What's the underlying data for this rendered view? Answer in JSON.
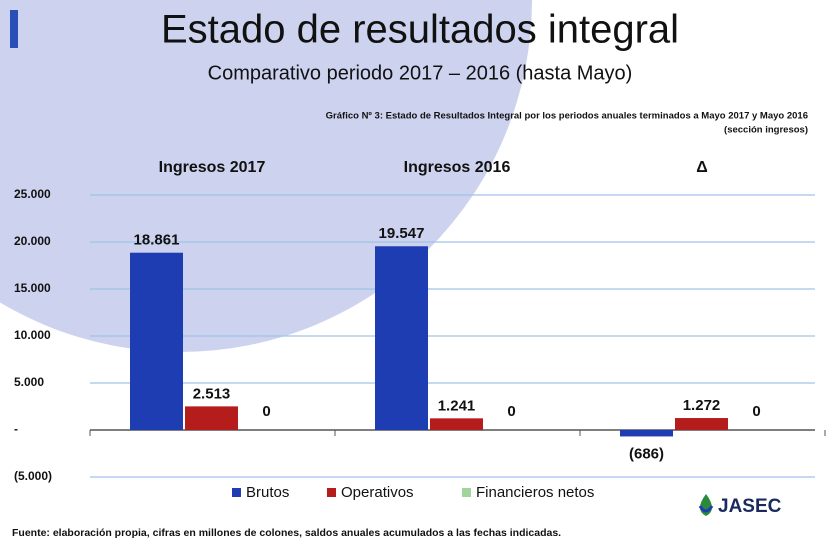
{
  "header": {
    "title": "Estado de resultados integral",
    "subtitle": "Comparativo periodo 2017 – 2016 (hasta Mayo)"
  },
  "chart_data": {
    "type": "bar",
    "title": "Gráfico Nº 3: Estado de Resultados Integral por los periodos anuales terminados a Mayo 2017 y Mayo 2016",
    "subtitle": "(sección ingresos)",
    "categories": [
      "Ingresos 2017",
      "Ingresos 2016",
      "Δ"
    ],
    "series": [
      {
        "name": "Brutos",
        "color": "#1f3db3",
        "values": [
          18861,
          19547,
          -686
        ],
        "value_labels": [
          "18.861",
          "19.547",
          "(686)"
        ]
      },
      {
        "name": "Operativos",
        "color": "#b51c1c",
        "values": [
          2513,
          1241,
          1272
        ],
        "value_labels": [
          "2.513",
          "1.241",
          "1.272"
        ]
      },
      {
        "name": "Financieros netos",
        "color": "#9fd49c",
        "values": [
          0,
          0,
          0
        ]
      }
    ],
    "ylim": [
      -5000,
      25000
    ],
    "yticks": [
      {
        "value": -5000,
        "label": "(5.000)"
      },
      {
        "value": 0,
        "label": "-"
      },
      {
        "value": 5000,
        "label": "5.000"
      },
      {
        "value": 10000,
        "label": "10.000"
      },
      {
        "value": 15000,
        "label": "15.000"
      },
      {
        "value": 20000,
        "label": "20.000"
      },
      {
        "value": 25000,
        "label": "25.000"
      }
    ],
    "grid": true,
    "legend": "bottom"
  },
  "footer": {
    "source": "Fuente: elaboración propia, cifras en millones de colones, saldos anuales acumulados a las fechas indicadas.",
    "logo": "JASEC"
  }
}
